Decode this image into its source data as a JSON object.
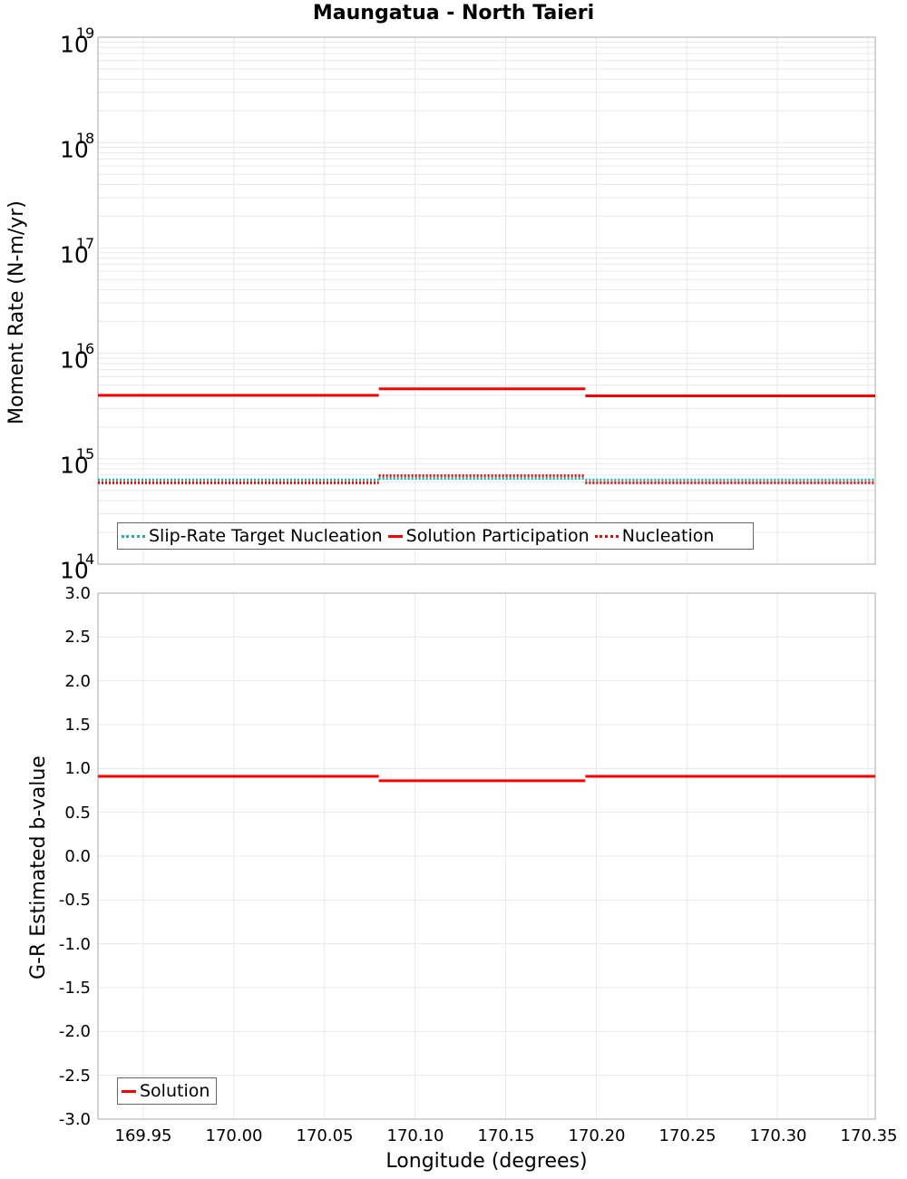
{
  "title": "Maungatua - North Taieri",
  "colors": {
    "solution": "#ff0000",
    "target": "#1ab3b3",
    "nucleation": "#ff0000",
    "grid": "#e8e8e8",
    "axis": "#aaaaaa"
  },
  "top_plot": {
    "ylabel": "Moment Rate (N-m/yr)",
    "yticks": [
      {
        "base": "10",
        "exp": "19"
      },
      {
        "base": "10",
        "exp": "18"
      },
      {
        "base": "10",
        "exp": "17"
      },
      {
        "base": "10",
        "exp": "16"
      },
      {
        "base": "10",
        "exp": "15"
      },
      {
        "base": "10",
        "exp": "14"
      }
    ],
    "legend": [
      {
        "label": "Slip-Rate Target Nucleation"
      },
      {
        "label": "Solution Participation"
      },
      {
        "label": "Nucleation"
      }
    ]
  },
  "bottom_plot": {
    "ylabel": "G-R Estimated b-value",
    "yticks": [
      "3.0",
      "2.5",
      "2.0",
      "1.5",
      "1.0",
      "0.5",
      "0.0",
      "-0.5",
      "-1.0",
      "-1.5",
      "-2.0",
      "-2.5",
      "-3.0"
    ],
    "legend": [
      {
        "label": "Solution"
      }
    ]
  },
  "xaxis": {
    "label": "Longitude (degrees)",
    "ticks": [
      "169.95",
      "170.00",
      "170.05",
      "170.10",
      "170.15",
      "170.20",
      "170.25",
      "170.30",
      "170.35"
    ]
  },
  "chart_data": [
    {
      "type": "line",
      "title": "Maungatua - North Taieri",
      "xlabel": "Longitude (degrees)",
      "ylabel": "Moment Rate (N-m/yr)",
      "yscale": "log",
      "ylim": [
        100000000000000.0,
        1e+19
      ],
      "xlim": [
        169.925,
        170.354
      ],
      "grid": true,
      "legend_position": "lower-left",
      "x_segments": [
        [
          169.925,
          170.08
        ],
        [
          170.08,
          170.194
        ],
        [
          170.194,
          170.354
        ]
      ],
      "series": [
        {
          "name": "Slip-Rate Target Nucleation",
          "style": "dotted",
          "color": "#1ab3b3",
          "values": [
            630000000000000.0,
            650000000000000.0,
            630000000000000.0
          ]
        },
        {
          "name": "Solution Participation",
          "style": "solid",
          "color": "#ff0000",
          "values": [
            4000000000000000.0,
            4600000000000000.0,
            3950000000000000.0
          ]
        },
        {
          "name": "Nucleation",
          "style": "dotted",
          "color": "#ff0000",
          "values": [
            590000000000000.0,
            690000000000000.0,
            590000000000000.0
          ]
        }
      ]
    },
    {
      "type": "line",
      "xlabel": "Longitude (degrees)",
      "ylabel": "G-R Estimated b-value",
      "ylim": [
        -3.0,
        3.0
      ],
      "xlim": [
        169.925,
        170.354
      ],
      "grid": true,
      "legend_position": "lower-left",
      "x_segments": [
        [
          169.925,
          170.08
        ],
        [
          170.08,
          170.194
        ],
        [
          170.194,
          170.354
        ]
      ],
      "series": [
        {
          "name": "Solution",
          "style": "solid",
          "color": "#ff0000",
          "values": [
            0.91,
            0.86,
            0.91
          ]
        }
      ]
    }
  ]
}
